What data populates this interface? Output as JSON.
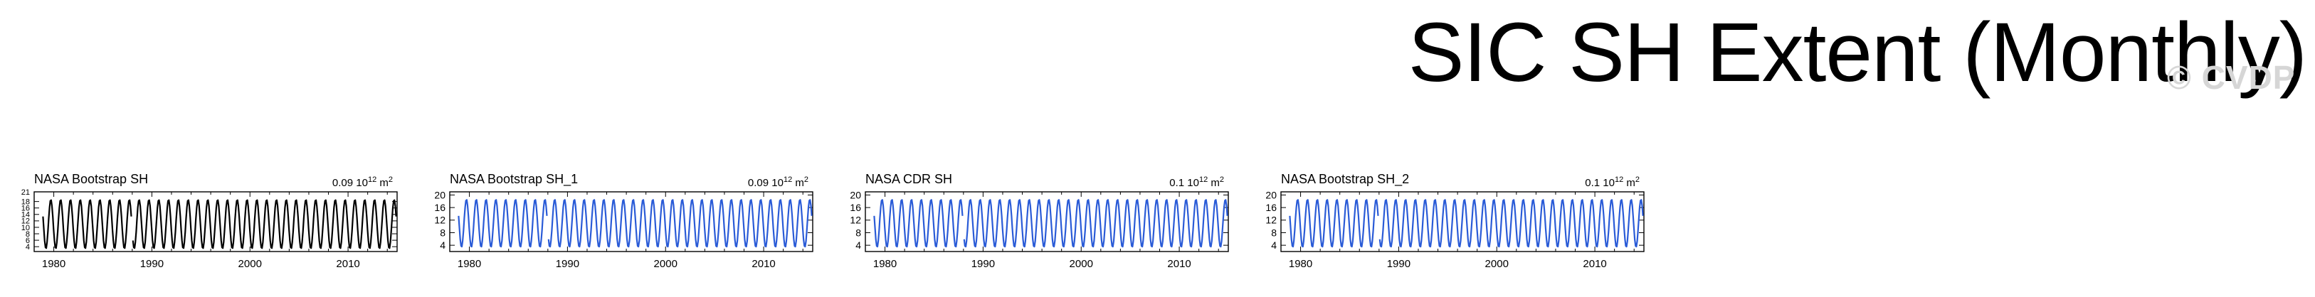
{
  "page_title": "SIC SH Extent (Monthly)",
  "watermark": "© CVDP",
  "chart_data": [
    {
      "type": "line",
      "title": "NASA Bootstrap SH",
      "stat_value": "0.09 10",
      "stat_exp": "12",
      "stat_unit": " m",
      "stat_unit_exp": "2",
      "color": "#000000",
      "xlabel": "",
      "ylabel": "",
      "xlim": [
        1978,
        2015
      ],
      "ylim": [
        2.5,
        21
      ],
      "xticks": [
        "1980",
        "1990",
        "2000",
        "2010"
      ],
      "yticks": [
        "4",
        "6",
        "8",
        "10",
        "12",
        "14",
        "16",
        "18",
        "21"
      ],
      "x_start": 1978.9,
      "annual_max": 18.6,
      "annual_min": 3.4,
      "gap": [
        1987.9,
        1988.0
      ]
    },
    {
      "type": "line",
      "title": "NASA Bootstrap SH_1",
      "stat_value": "0.09 10",
      "stat_exp": "12",
      "stat_unit": " m",
      "stat_unit_exp": "2",
      "color": "#2a5bd7",
      "xlabel": "",
      "ylabel": "",
      "xlim": [
        1978,
        2015
      ],
      "ylim": [
        2,
        21
      ],
      "xticks": [
        "1980",
        "1990",
        "2000",
        "2010"
      ],
      "yticks": [
        "4",
        "8",
        "12",
        "16",
        "20"
      ],
      "x_start": 1978.9,
      "annual_max": 18.6,
      "annual_min": 3.4,
      "gap": [
        1987.9,
        1988.0
      ]
    },
    {
      "type": "line",
      "title": "NASA CDR SH",
      "stat_value": "0.1 10",
      "stat_exp": "12",
      "stat_unit": " m",
      "stat_unit_exp": "2",
      "color": "#2a5bd7",
      "xlabel": "",
      "ylabel": "",
      "xlim": [
        1978,
        2015
      ],
      "ylim": [
        2,
        21
      ],
      "xticks": [
        "1980",
        "1990",
        "2000",
        "2010"
      ],
      "yticks": [
        "4",
        "8",
        "12",
        "16",
        "20"
      ],
      "x_start": 1978.9,
      "annual_max": 18.6,
      "annual_min": 3.4,
      "gap": [
        1987.9,
        1988.0
      ]
    },
    {
      "type": "line",
      "title": "NASA Bootstrap SH_2",
      "stat_value": "0.1 10",
      "stat_exp": "12",
      "stat_unit": " m",
      "stat_unit_exp": "2",
      "color": "#2a5bd7",
      "xlabel": "",
      "ylabel": "",
      "xlim": [
        1978,
        2015
      ],
      "ylim": [
        2,
        21
      ],
      "xticks": [
        "1980",
        "1990",
        "2000",
        "2010"
      ],
      "yticks": [
        "4",
        "8",
        "12",
        "16",
        "20"
      ],
      "x_start": 1978.9,
      "annual_max": 18.6,
      "annual_min": 3.4,
      "gap": [
        1987.9,
        1988.0
      ]
    }
  ]
}
